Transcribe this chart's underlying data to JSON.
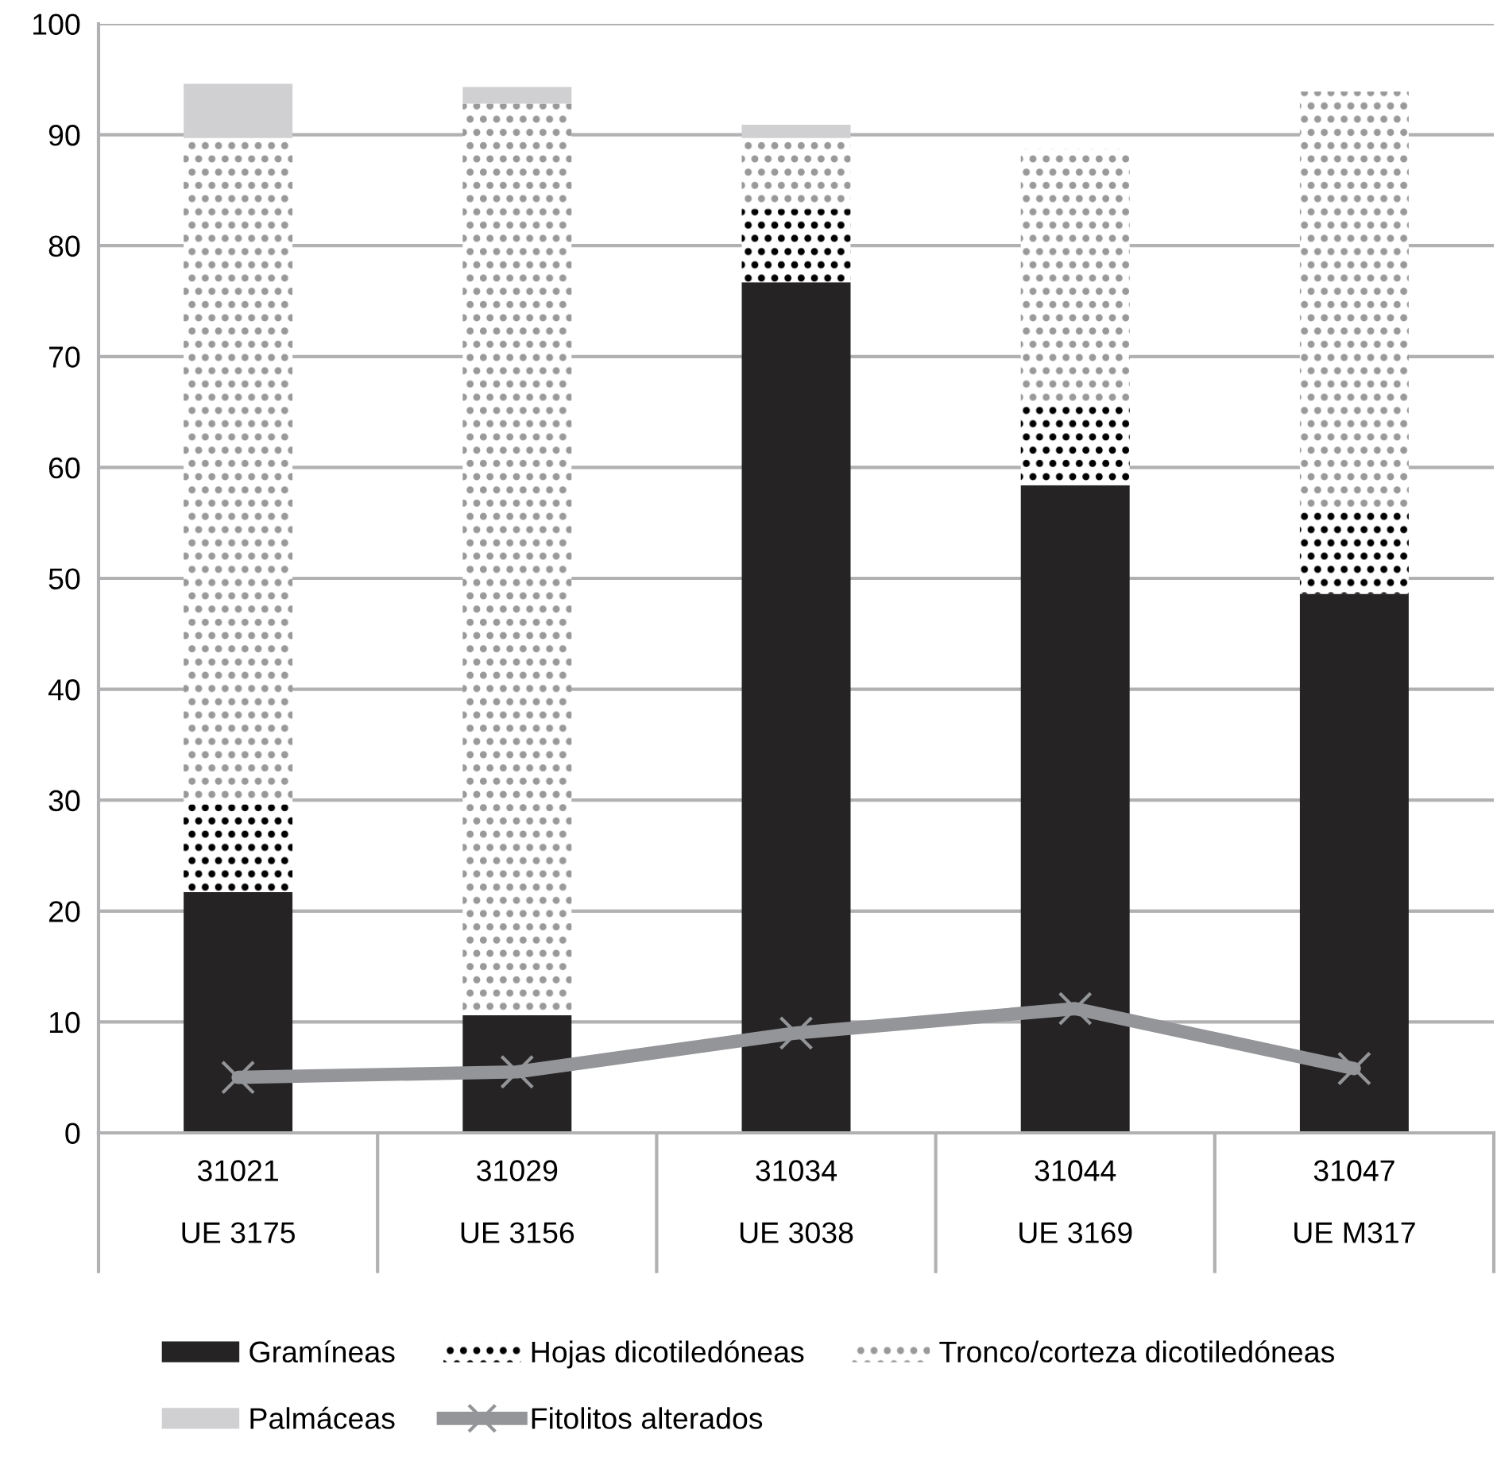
{
  "chart_data": {
    "type": "bar",
    "stacked": true,
    "categories": [
      "31021\n\nUE 3175",
      "31029\n\nUE 3156",
      "31034\n\nUE 3038",
      "31044\n\nUE 3169",
      "31047\n\nUE M317"
    ],
    "series": [
      {
        "name": "Gramíneas",
        "color": "#252324",
        "values": [
          21.7,
          10.6,
          76.7,
          58.4,
          48.6
        ]
      },
      {
        "name": "Hojas dicotiledóneas",
        "color": "#000000",
        "values": [
          7.9,
          0,
          6.6,
          7.6,
          7.7
        ]
      },
      {
        "name": "Tronco/corteza dicotiledóneas",
        "color": "#999999",
        "values": [
          60.1,
          82.2,
          6.4,
          22.7,
          37.6
        ]
      },
      {
        "name": "Palmáceas",
        "color": "#d0d0d2",
        "values": [
          4.9,
          1.5,
          1.2,
          0,
          0
        ]
      },
      {
        "name": "Fitolitos alterados",
        "type": "line",
        "color": "#939598",
        "marker": "cross",
        "values": [
          5.0,
          5.5,
          9.0,
          11.2,
          5.8
        ]
      }
    ],
    "ylim": [
      0,
      100
    ],
    "yticks": [
      0,
      10,
      20,
      30,
      40,
      50,
      60,
      70,
      80,
      90,
      100
    ],
    "grid": "y",
    "legend": "bottom"
  }
}
